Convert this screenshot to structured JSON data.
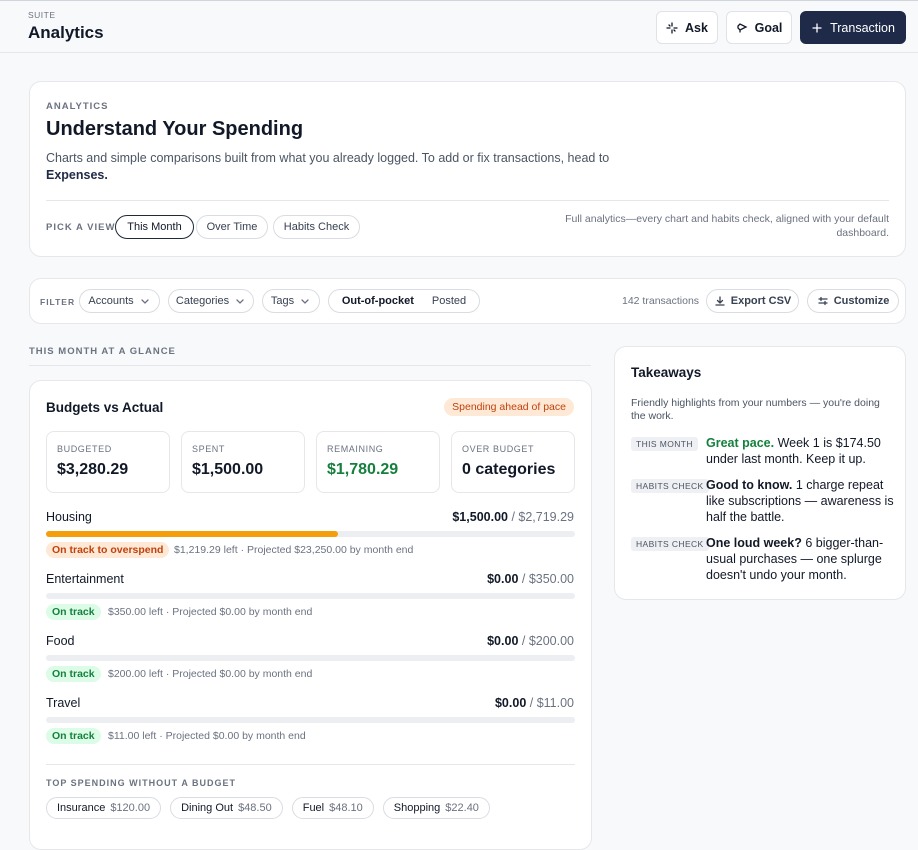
{
  "header": {
    "eyebrow": "SUITE",
    "title": "Analytics",
    "buttons": [
      "Ask",
      "Goal",
      "Transaction"
    ]
  },
  "intro": {
    "eyebrow": "ANALYTICS",
    "title": "Understand Your Spending",
    "description": "Charts and simple comparisons built from what you already logged. To add or fix transactions, head to",
    "link": "Expenses.",
    "view_label": "PICK A VIEW",
    "views": [
      "This Month",
      "Over Time",
      "Habits Check"
    ],
    "note": "Full analytics—every chart and habits check, aligned with your default dashboard."
  },
  "filters": {
    "label": "FILTER",
    "dropdowns": [
      "Accounts",
      "Categories",
      "Tags"
    ],
    "toggle": [
      "Out-of-pocket",
      "Posted"
    ],
    "count": "142 transactions",
    "actions": [
      "Export CSV",
      "Customize"
    ]
  },
  "section_title": "THIS MONTH AT A GLANCE",
  "budgets": {
    "title": "Budgets vs Actual",
    "badge": "Spending ahead of pace",
    "stats": [
      {
        "label": "BUDGETED",
        "value": "$3,280.29"
      },
      {
        "label": "SPENT",
        "value": "$1,500.00"
      },
      {
        "label": "REMAINING",
        "value": "$1,780.29",
        "color": "#15803d"
      },
      {
        "label": "OVER BUDGET",
        "value": "0 categories"
      }
    ],
    "categories": [
      {
        "name": "Housing",
        "spent": "$1,500.00",
        "budget": "$2,719.29",
        "status": "On track to overspend",
        "color": "#f59e0b",
        "left": "$1,219.29 left",
        "projection": "· Projected $23,250.00 by month end"
      },
      {
        "name": "Entertainment",
        "spent": "$0.00",
        "budget": "$350.00",
        "status": "On track",
        "color": "#16a34a",
        "left": "$350.00 left",
        "projection": "· Projected $0.00 by month end"
      },
      {
        "name": "Food",
        "spent": "$0.00",
        "budget": "$200.00",
        "status": "On track",
        "color": "#16a34a",
        "left": "$200.00 left",
        "projection": "· Projected $0.00 by month end"
      },
      {
        "name": "Travel",
        "spent": "$0.00",
        "budget": "$11.00",
        "status": "On track",
        "color": "#16a34a",
        "left": "$11.00 left",
        "projection": "· Projected $0.00 by month end"
      }
    ],
    "unbudgeted_title": "TOP SPENDING WITHOUT A BUDGET",
    "unbudgeted": [
      {
        "name": "Insurance",
        "amount": "$120.00"
      },
      {
        "name": "Dining Out",
        "amount": "$48.50"
      },
      {
        "name": "Fuel",
        "amount": "$48.10"
      },
      {
        "name": "Shopping",
        "amount": "$22.40"
      }
    ]
  },
  "takeaways": {
    "title": "Takeaways",
    "description": "Friendly highlights from your numbers — you're doing the work.",
    "items": [
      {
        "tag": "THIS MONTH",
        "lead": "Great pace.",
        "color": "#15803d",
        "text": "Week 1 is $174.50 under last month. Keep it up."
      },
      {
        "tag": "HABITS CHECK",
        "lead": "Good to know.",
        "color": "#111827",
        "text": "1 charge repeat like subscriptions — awareness is half the battle."
      },
      {
        "tag": "HABITS CHECK",
        "lead": "One loud week?",
        "color": "#111827",
        "text": "6 bigger-than-usual purchases — one splurge doesn't undo your month."
      }
    ]
  }
}
